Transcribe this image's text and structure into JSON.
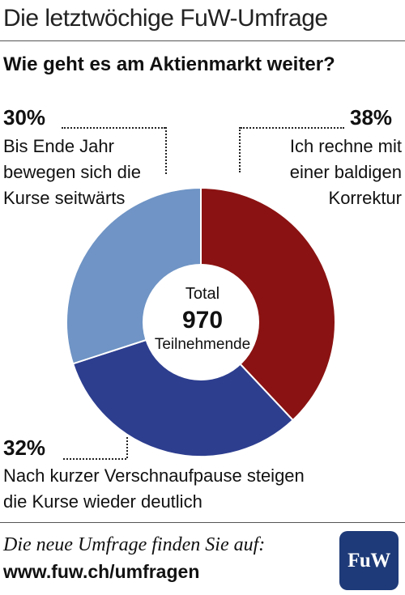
{
  "header": {
    "title": "Die letztwöchige FuW-Umfrage"
  },
  "question": "Wie geht es am Aktienmarkt weiter?",
  "chart_data": {
    "type": "pie",
    "title": "Wie geht es am Aktienmarkt weiter?",
    "slices": [
      {
        "label": "Ich rechne mit einer baldigen Korrektur",
        "value": 38,
        "value_label": "38%",
        "lines": [
          "Ich rechne mit",
          "einer baldigen",
          "Korrektur"
        ],
        "color": "#8b1212"
      },
      {
        "label": "Nach kurzer Verschnaufpause steigen die Kurse wieder deutlich",
        "value": 32,
        "value_label": "32%",
        "lines": [
          "Nach kurzer Verschnaufpause steigen",
          "die Kurse wieder deutlich"
        ],
        "color": "#2d3e8f"
      },
      {
        "label": "Bis Ende Jahr bewegen sich die Kurse seitwärts",
        "value": 30,
        "value_label": "30%",
        "lines": [
          "Bis Ende Jahr",
          "bewegen sich die",
          "Kurse seitwärts"
        ],
        "color": "#6f94c5"
      }
    ],
    "center": {
      "line1": "Total",
      "line2": "970",
      "line3": "Teilnehmende"
    }
  },
  "footer": {
    "text": "Die neue Umfrage finden Sie auf:",
    "url": "www.fuw.ch/umfragen",
    "logo": "FuW"
  }
}
